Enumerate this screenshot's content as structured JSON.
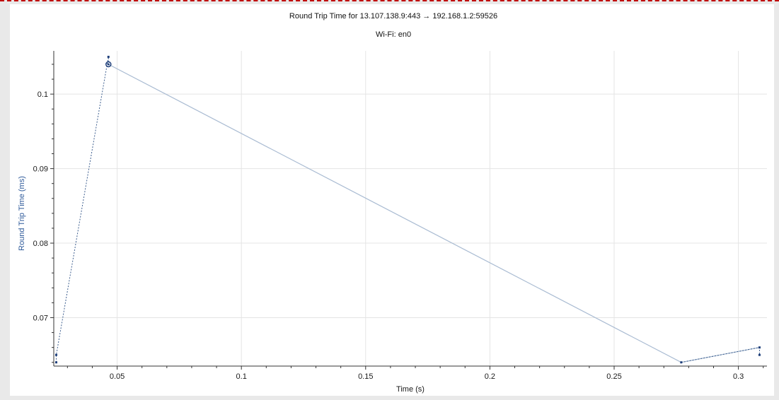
{
  "colors": {
    "background": "#e9e9e9",
    "plot_background": "#ffffff",
    "grid": "#e4e4e4",
    "axis": "#333333",
    "series_line": "#a9bbd2",
    "series_dashed": "#3e5f8f",
    "marker": "#1f3f7a",
    "ylabel": "#2e5a9a",
    "border_dash": "#c00000"
  },
  "chart_data": {
    "type": "line",
    "title": "Round Trip Time for 13.107.138.9:443 → 192.168.1.2:59526",
    "subtitle": "Wi-Fi: en0",
    "xlabel": "Time (s)",
    "ylabel": "Round Trip Time (ms)",
    "xlim": [
      0.0245,
      0.3115
    ],
    "ylim": [
      0.0635,
      0.1058
    ],
    "xticks": [
      0.05,
      0.1,
      0.15,
      0.2,
      0.25,
      0.3
    ],
    "xtick_labels": [
      "0.05",
      "0.1",
      "0.15",
      "0.2",
      "0.25",
      "0.3"
    ],
    "yticks": [
      0.07,
      0.08,
      0.09,
      0.1
    ],
    "ytick_labels": [
      "0.07",
      "0.08",
      "0.09",
      "0.1"
    ],
    "grid": true,
    "series": [
      {
        "style": "solid",
        "x": [
          0.0465,
          0.277,
          0.3085
        ],
        "y": [
          0.104,
          0.064,
          0.066
        ]
      },
      {
        "style": "dashed",
        "x": [
          0.0255,
          0.0255,
          0.0465,
          0.0465
        ],
        "y": [
          0.064,
          0.065,
          0.105,
          0.104
        ]
      },
      {
        "style": "dashed",
        "x": [
          0.277,
          0.3085,
          0.3085
        ],
        "y": [
          0.064,
          0.066,
          0.065
        ]
      }
    ],
    "points": [
      {
        "x": 0.0255,
        "y": 0.064
      },
      {
        "x": 0.0255,
        "y": 0.065
      },
      {
        "x": 0.0465,
        "y": 0.105
      },
      {
        "x": 0.277,
        "y": 0.064
      },
      {
        "x": 0.3085,
        "y": 0.066
      },
      {
        "x": 0.3085,
        "y": 0.065
      }
    ],
    "highlight": {
      "x": 0.0465,
      "y": 0.104
    }
  }
}
